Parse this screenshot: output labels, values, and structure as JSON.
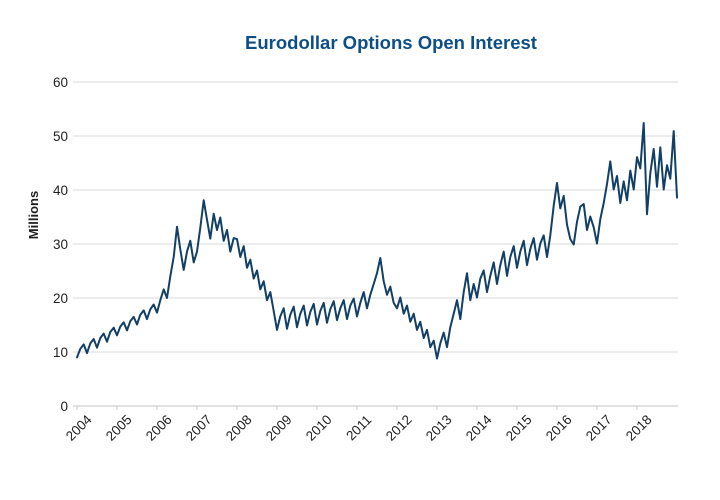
{
  "title": "Eurodollar Options Open Interest",
  "colors": {
    "title": "#0d4e87",
    "line": "#123f66",
    "grid": "#d9d9d9",
    "axis": "#c6c6c6",
    "tick_text": "#1f1f1f",
    "background": "#ffffff"
  },
  "chart_data": {
    "type": "line",
    "title": "Eurodollar Options Open Interest",
    "xlabel": "",
    "ylabel": "Millions",
    "ylim": [
      0,
      60
    ],
    "yticks": [
      0,
      10,
      20,
      30,
      40,
      50,
      60
    ],
    "xtick_labels": [
      "2004",
      "2005",
      "2006",
      "2007",
      "2008",
      "2009",
      "2010",
      "2011",
      "2012",
      "2013",
      "2014",
      "2015",
      "2016",
      "2017",
      "2018"
    ],
    "xtick_start_year": 2004,
    "xlim": [
      2003.9,
      2019.05
    ],
    "grid": true,
    "legend": "none",
    "series": [
      {
        "name": "Eurodollar Options Open Interest",
        "color": "#123f66",
        "points": [
          [
            2004.0,
            9.0
          ],
          [
            2004.083,
            10.6
          ],
          [
            2004.167,
            11.4
          ],
          [
            2004.25,
            9.8
          ],
          [
            2004.333,
            11.6
          ],
          [
            2004.417,
            12.4
          ],
          [
            2004.5,
            10.8
          ],
          [
            2004.583,
            12.6
          ],
          [
            2004.667,
            13.4
          ],
          [
            2004.75,
            11.9
          ],
          [
            2004.833,
            13.7
          ],
          [
            2004.917,
            14.5
          ],
          [
            2005.0,
            13.1
          ],
          [
            2005.083,
            14.7
          ],
          [
            2005.167,
            15.5
          ],
          [
            2005.25,
            14.0
          ],
          [
            2005.333,
            15.7
          ],
          [
            2005.417,
            16.5
          ],
          [
            2005.5,
            15.1
          ],
          [
            2005.583,
            16.9
          ],
          [
            2005.667,
            17.7
          ],
          [
            2005.75,
            16.1
          ],
          [
            2005.833,
            17.9
          ],
          [
            2005.917,
            18.8
          ],
          [
            2006.0,
            17.3
          ],
          [
            2006.083,
            19.6
          ],
          [
            2006.167,
            21.6
          ],
          [
            2006.25,
            20.0
          ],
          [
            2006.333,
            24.0
          ],
          [
            2006.417,
            27.6
          ],
          [
            2006.5,
            33.2
          ],
          [
            2006.583,
            29.0
          ],
          [
            2006.667,
            25.2
          ],
          [
            2006.75,
            28.6
          ],
          [
            2006.833,
            30.6
          ],
          [
            2006.917,
            26.6
          ],
          [
            2007.0,
            28.6
          ],
          [
            2007.083,
            33.0
          ],
          [
            2007.167,
            38.1
          ],
          [
            2007.25,
            34.5
          ],
          [
            2007.333,
            31.0
          ],
          [
            2007.417,
            35.6
          ],
          [
            2007.5,
            32.6
          ],
          [
            2007.583,
            34.9
          ],
          [
            2007.667,
            30.6
          ],
          [
            2007.75,
            32.6
          ],
          [
            2007.833,
            28.6
          ],
          [
            2007.917,
            31.1
          ],
          [
            2008.0,
            30.9
          ],
          [
            2008.083,
            27.6
          ],
          [
            2008.167,
            29.6
          ],
          [
            2008.25,
            25.6
          ],
          [
            2008.333,
            27.1
          ],
          [
            2008.417,
            23.6
          ],
          [
            2008.5,
            25.1
          ],
          [
            2008.583,
            21.6
          ],
          [
            2008.667,
            23.1
          ],
          [
            2008.75,
            19.6
          ],
          [
            2008.833,
            21.1
          ],
          [
            2008.917,
            17.6
          ],
          [
            2009.0,
            14.1
          ],
          [
            2009.083,
            16.6
          ],
          [
            2009.167,
            18.1
          ],
          [
            2009.25,
            14.3
          ],
          [
            2009.333,
            16.9
          ],
          [
            2009.417,
            18.4
          ],
          [
            2009.5,
            14.6
          ],
          [
            2009.583,
            17.1
          ],
          [
            2009.667,
            18.6
          ],
          [
            2009.75,
            14.9
          ],
          [
            2009.833,
            17.4
          ],
          [
            2009.917,
            18.9
          ],
          [
            2010.0,
            15.1
          ],
          [
            2010.083,
            17.6
          ],
          [
            2010.167,
            19.1
          ],
          [
            2010.25,
            15.4
          ],
          [
            2010.333,
            17.9
          ],
          [
            2010.417,
            19.4
          ],
          [
            2010.5,
            15.9
          ],
          [
            2010.583,
            18.1
          ],
          [
            2010.667,
            19.6
          ],
          [
            2010.75,
            16.1
          ],
          [
            2010.833,
            18.6
          ],
          [
            2010.917,
            19.9
          ],
          [
            2011.0,
            16.6
          ],
          [
            2011.083,
            19.1
          ],
          [
            2011.167,
            21.1
          ],
          [
            2011.25,
            18.1
          ],
          [
            2011.333,
            20.6
          ],
          [
            2011.417,
            22.6
          ],
          [
            2011.5,
            24.6
          ],
          [
            2011.583,
            27.4
          ],
          [
            2011.667,
            23.1
          ],
          [
            2011.75,
            20.6
          ],
          [
            2011.833,
            22.1
          ],
          [
            2011.917,
            19.1
          ],
          [
            2012.0,
            18.1
          ],
          [
            2012.083,
            20.1
          ],
          [
            2012.167,
            17.1
          ],
          [
            2012.25,
            18.6
          ],
          [
            2012.333,
            15.6
          ],
          [
            2012.417,
            17.1
          ],
          [
            2012.5,
            14.1
          ],
          [
            2012.583,
            15.6
          ],
          [
            2012.667,
            12.6
          ],
          [
            2012.75,
            14.1
          ],
          [
            2012.833,
            10.9
          ],
          [
            2012.917,
            12.1
          ],
          [
            2013.0,
            8.8
          ],
          [
            2013.083,
            11.6
          ],
          [
            2013.167,
            13.6
          ],
          [
            2013.25,
            10.9
          ],
          [
            2013.333,
            14.6
          ],
          [
            2013.417,
            17.1
          ],
          [
            2013.5,
            19.6
          ],
          [
            2013.583,
            16.1
          ],
          [
            2013.667,
            21.1
          ],
          [
            2013.75,
            24.6
          ],
          [
            2013.833,
            19.6
          ],
          [
            2013.917,
            22.6
          ],
          [
            2014.0,
            20.1
          ],
          [
            2014.083,
            23.6
          ],
          [
            2014.167,
            25.1
          ],
          [
            2014.25,
            21.1
          ],
          [
            2014.333,
            24.1
          ],
          [
            2014.417,
            26.6
          ],
          [
            2014.5,
            22.6
          ],
          [
            2014.583,
            26.1
          ],
          [
            2014.667,
            28.6
          ],
          [
            2014.75,
            24.1
          ],
          [
            2014.833,
            27.6
          ],
          [
            2014.917,
            29.6
          ],
          [
            2015.0,
            25.6
          ],
          [
            2015.083,
            28.6
          ],
          [
            2015.167,
            30.6
          ],
          [
            2015.25,
            26.1
          ],
          [
            2015.333,
            29.1
          ],
          [
            2015.417,
            31.1
          ],
          [
            2015.5,
            27.1
          ],
          [
            2015.583,
            30.1
          ],
          [
            2015.667,
            31.6
          ],
          [
            2015.75,
            27.6
          ],
          [
            2015.833,
            31.6
          ],
          [
            2015.917,
            37.1
          ],
          [
            2016.0,
            41.3
          ],
          [
            2016.083,
            36.6
          ],
          [
            2016.167,
            38.9
          ],
          [
            2016.25,
            33.6
          ],
          [
            2016.333,
            30.9
          ],
          [
            2016.417,
            29.9
          ],
          [
            2016.5,
            34.1
          ],
          [
            2016.583,
            36.9
          ],
          [
            2016.667,
            37.4
          ],
          [
            2016.75,
            32.6
          ],
          [
            2016.833,
            35.1
          ],
          [
            2016.917,
            33.1
          ],
          [
            2017.0,
            30.1
          ],
          [
            2017.083,
            34.6
          ],
          [
            2017.167,
            37.6
          ],
          [
            2017.25,
            41.1
          ],
          [
            2017.333,
            45.3
          ],
          [
            2017.417,
            40.1
          ],
          [
            2017.5,
            42.6
          ],
          [
            2017.583,
            37.6
          ],
          [
            2017.667,
            41.6
          ],
          [
            2017.75,
            38.1
          ],
          [
            2017.833,
            43.6
          ],
          [
            2017.917,
            40.1
          ],
          [
            2018.0,
            46.1
          ],
          [
            2018.083,
            44.0
          ],
          [
            2018.167,
            52.4
          ],
          [
            2018.25,
            35.5
          ],
          [
            2018.333,
            43.1
          ],
          [
            2018.417,
            47.6
          ],
          [
            2018.5,
            40.6
          ],
          [
            2018.583,
            47.9
          ],
          [
            2018.667,
            40.1
          ],
          [
            2018.75,
            44.6
          ],
          [
            2018.833,
            42.1
          ],
          [
            2018.917,
            50.9
          ],
          [
            2019.0,
            38.6
          ]
        ]
      }
    ]
  }
}
